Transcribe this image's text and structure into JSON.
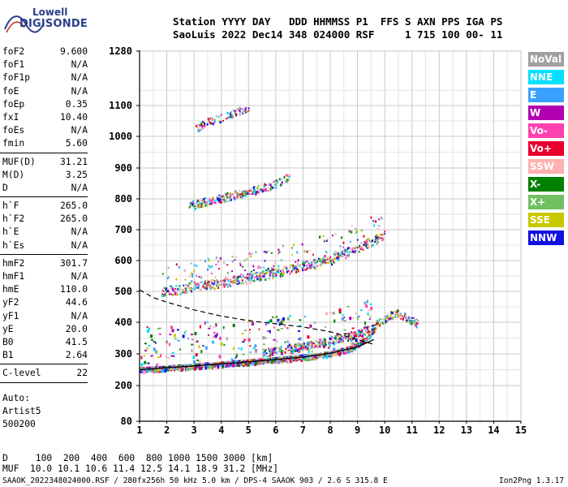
{
  "logo": {
    "top": "Lowell",
    "bottom": "DIGISONDE"
  },
  "header": {
    "line1": "Station YYYY DAY   DDD HHMMSS P1  FFS S AXN PPS IGA PS",
    "line2": "SaoLuis 2022 Dec14 348 024000 RSF     1 715 100 00- 11"
  },
  "params": {
    "group1": [
      {
        "name": "foF2",
        "value": "9.600"
      },
      {
        "name": "foF1",
        "value": "N/A"
      },
      {
        "name": "foF1p",
        "value": "N/A"
      },
      {
        "name": "foE",
        "value": "N/A"
      },
      {
        "name": "foEp",
        "value": "0.35"
      },
      {
        "name": "fxI",
        "value": "10.40"
      },
      {
        "name": "foEs",
        "value": "N/A"
      },
      {
        "name": "fmin",
        "value": "5.60"
      }
    ],
    "group2": [
      {
        "name": "MUF(D)",
        "value": "31.21"
      },
      {
        "name": "M(D)",
        "value": "3.25"
      },
      {
        "name": "D",
        "value": "N/A"
      }
    ],
    "group3": [
      {
        "name": "h`F",
        "value": "265.0"
      },
      {
        "name": "h`F2",
        "value": "265.0"
      },
      {
        "name": "h`E",
        "value": "N/A"
      },
      {
        "name": "h`Es",
        "value": "N/A"
      }
    ],
    "group4": [
      {
        "name": "hmF2",
        "value": "301.7"
      },
      {
        "name": "hmF1",
        "value": "N/A"
      },
      {
        "name": "hmE",
        "value": "110.0"
      },
      {
        "name": "yF2",
        "value": "44.6"
      },
      {
        "name": "yF1",
        "value": "N/A"
      },
      {
        "name": "yE",
        "value": "20.0"
      },
      {
        "name": "B0",
        "value": "41.5"
      },
      {
        "name": "B1",
        "value": "2.64"
      }
    ],
    "group5": [
      {
        "name": "C-level",
        "value": "22"
      }
    ],
    "auto_label": "Auto:",
    "artist": "Artist5",
    "code": "500200"
  },
  "legend": [
    {
      "label": "NoVal",
      "color": "#a0a0a0"
    },
    {
      "label": "NNE",
      "color": "#00e0ff"
    },
    {
      "label": "E",
      "color": "#3aa0ff"
    },
    {
      "label": "W",
      "color": "#b000b0"
    },
    {
      "label": "Vo-",
      "color": "#ff40b0"
    },
    {
      "label": "Vo+",
      "color": "#e8002e"
    },
    {
      "label": "SSW",
      "color": "#ffb0b0"
    },
    {
      "label": "X-",
      "color": "#008000"
    },
    {
      "label": "X+",
      "color": "#70c060"
    },
    {
      "label": "SSE",
      "color": "#c8c800"
    },
    {
      "label": "NNW",
      "color": "#1010e0"
    }
  ],
  "footer": {
    "distance_line": "D     100  200  400  600  800 1000 1500 3000 [km]",
    "muf_line": "MUF  10.0 10.1 10.6 11.4 12.5 14.1 18.9 31.2 [MHz]",
    "file_line": "SAAOK_2022348024000.RSF / 280fx256h 50 kHz 5.0 km / DPS-4 SAAOK 903 / 2.6 S 315.8 E",
    "version": "Ion2Png 1.3.17"
  },
  "chart_data": {
    "type": "scatter",
    "xlim": [
      1,
      15
    ],
    "x_ticks": [
      "1",
      "2",
      "3",
      "4",
      "5",
      "6",
      "7",
      "8",
      "9",
      "10",
      "11",
      "12",
      "13",
      "14",
      "15"
    ],
    "y_ticks": [
      {
        "label": "1280",
        "value": 1280
      },
      {
        "label": "1100",
        "value": 1100
      },
      {
        "label": "1000",
        "value": 1000
      },
      {
        "label": "900",
        "value": 900
      },
      {
        "label": "800",
        "value": 800
      },
      {
        "label": "700",
        "value": 700
      },
      {
        "label": "600",
        "value": 600
      },
      {
        "label": "500",
        "value": 500
      },
      {
        "label": "400",
        "value": 400
      },
      {
        "label": "300",
        "value": 300
      },
      {
        "label": "200",
        "value": 200
      },
      {
        "label": "80",
        "value": 80
      }
    ],
    "echo_traces": [
      {
        "name": "O-mode F trace (1st hop)",
        "points": [
          [
            1.0,
            250
          ],
          [
            2.0,
            255
          ],
          [
            3.0,
            262
          ],
          [
            4.0,
            268
          ],
          [
            5.0,
            275
          ],
          [
            6.0,
            282
          ],
          [
            7.0,
            290
          ],
          [
            8.0,
            300
          ],
          [
            8.8,
            320
          ],
          [
            9.3,
            345
          ],
          [
            9.6,
            380
          ]
        ]
      },
      {
        "name": "X-mode trace",
        "points": [
          [
            5.5,
            300
          ],
          [
            7.0,
            320
          ],
          [
            8.0,
            340
          ],
          [
            9.0,
            360
          ],
          [
            9.8,
            400
          ],
          [
            10.4,
            430
          ],
          [
            11.2,
            395
          ]
        ]
      },
      {
        "name": "2nd hop",
        "points": [
          [
            1.8,
            495
          ],
          [
            3.0,
            515
          ],
          [
            4.0,
            525
          ],
          [
            5.0,
            540
          ],
          [
            6.0,
            560
          ],
          [
            7.0,
            580
          ],
          [
            8.0,
            600
          ],
          [
            9.0,
            640
          ],
          [
            10.0,
            680
          ]
        ]
      },
      {
        "name": "3rd hop",
        "points": [
          [
            2.8,
            775
          ],
          [
            3.5,
            790
          ],
          [
            4.5,
            810
          ],
          [
            5.5,
            830
          ],
          [
            6.0,
            850
          ],
          [
            6.5,
            870
          ]
        ]
      },
      {
        "name": "4th hop",
        "points": [
          [
            3.0,
            1020
          ],
          [
            3.5,
            1045
          ],
          [
            4.0,
            1060
          ],
          [
            4.5,
            1075
          ],
          [
            5.0,
            1090
          ]
        ]
      }
    ],
    "profile_solid": [
      [
        1.0,
        250
      ],
      [
        3.0,
        262
      ],
      [
        5.0,
        275
      ],
      [
        7.0,
        290
      ],
      [
        8.0,
        302
      ],
      [
        9.0,
        322
      ],
      [
        9.6,
        345
      ]
    ],
    "profile_dashed": [
      [
        1.0,
        505
      ],
      [
        1.5,
        480
      ],
      [
        2.0,
        465
      ],
      [
        3.0,
        440
      ],
      [
        4.0,
        420
      ],
      [
        5.0,
        405
      ],
      [
        6.0,
        395
      ],
      [
        7.0,
        385
      ],
      [
        8.0,
        370
      ],
      [
        9.0,
        345
      ],
      [
        9.6,
        330
      ]
    ]
  }
}
